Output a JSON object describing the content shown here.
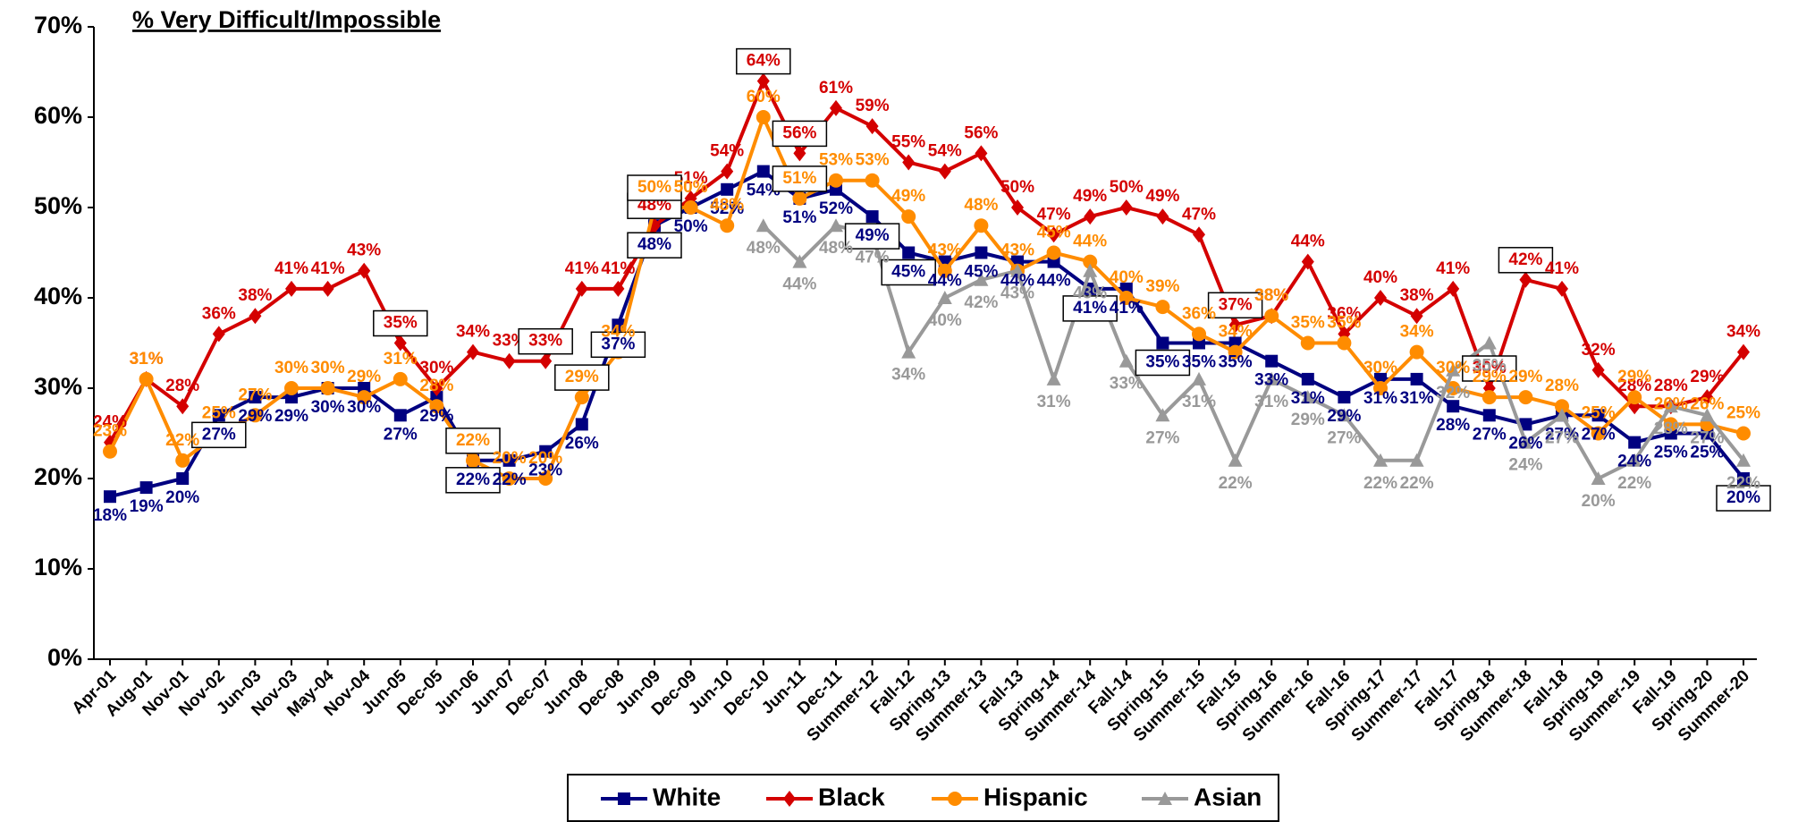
{
  "chart_data": {
    "type": "line",
    "title": "% Very Difficult/Impossible",
    "categories": [
      "Apr-01",
      "Aug-01",
      "Nov-01",
      "Nov-02",
      "Jun-03",
      "Nov-03",
      "May-04",
      "Nov-04",
      "Jun-05",
      "Dec-05",
      "Jun-06",
      "Jun-07",
      "Dec-07",
      "Jun-08",
      "Dec-08",
      "Jun-09",
      "Dec-09",
      "Jun-10",
      "Dec-10",
      "Jun-11",
      "Dec-11",
      "Summer-12",
      "Fall-12",
      "Spring-13",
      "Summer-13",
      "Fall-13",
      "Spring-14",
      "Summer-14",
      "Fall-14",
      "Spring-15",
      "Summer-15",
      "Fall-15",
      "Spring-16",
      "Summer-16",
      "Fall-16",
      "Spring-17",
      "Summer-17",
      "Fall-17",
      "Spring-18",
      "Summer-18",
      "Fall-18",
      "Spring-19",
      "Summer-19",
      "Fall-19",
      "Spring-20",
      "Summer-20"
    ],
    "ylim": [
      0,
      70
    ],
    "yticks": [
      {
        "value": 0,
        "label": "0%"
      },
      {
        "value": 10,
        "label": "10%"
      },
      {
        "value": 20,
        "label": "20%"
      },
      {
        "value": 30,
        "label": "30%"
      },
      {
        "value": 40,
        "label": "40%"
      },
      {
        "value": 50,
        "label": "50%"
      },
      {
        "value": 60,
        "label": "60%"
      },
      {
        "value": 70,
        "label": "70%"
      }
    ],
    "legend": "bottom",
    "series": [
      {
        "name": "White",
        "color": "#000080",
        "marker": "square",
        "values": [
          18,
          19,
          20,
          27,
          29,
          29,
          30,
          30,
          27,
          29,
          22,
          22,
          23,
          26,
          37,
          48,
          50,
          52,
          54,
          51,
          52,
          49,
          45,
          44,
          45,
          44,
          44,
          41,
          41,
          35,
          35,
          35,
          33,
          31,
          29,
          31,
          31,
          28,
          27,
          26,
          27,
          27,
          24,
          25,
          25,
          20
        ],
        "value_labels": [
          "18%",
          "19%",
          "20%",
          "27%",
          "29%",
          "29%",
          "30%",
          "30%",
          "27%",
          "29%",
          "22%",
          "22%",
          "23%",
          "26%",
          "37%",
          "48%",
          "50%",
          "52%",
          "54%",
          "51%",
          "52%",
          "49%",
          "45%",
          "44%",
          "45%",
          "44%",
          "44%",
          "41%",
          "41%",
          "35%",
          "35%",
          "35%",
          "33%",
          "31%",
          "29%",
          "31%",
          "31%",
          "28%",
          "27%",
          "26%",
          "27%",
          "27%",
          "24%",
          "25%",
          "25%",
          "20%"
        ],
        "boxed": [
          3,
          10,
          14,
          15,
          21,
          22,
          27,
          29,
          45
        ]
      },
      {
        "name": "Black",
        "color": "#d40000",
        "marker": "diamond",
        "values": [
          24,
          31,
          28,
          36,
          38,
          41,
          41,
          43,
          35,
          30,
          34,
          33,
          33,
          41,
          41,
          48,
          51,
          54,
          64,
          56,
          61,
          59,
          55,
          54,
          56,
          50,
          47,
          49,
          50,
          49,
          47,
          37,
          38,
          44,
          36,
          40,
          38,
          41,
          30,
          42,
          41,
          32,
          28,
          28,
          29,
          34
        ],
        "value_labels": [
          "24%",
          "31%",
          "28%",
          "36%",
          "38%",
          "41%",
          "41%",
          "43%",
          "35%",
          "30%",
          "34%",
          "33%",
          "33%",
          "41%",
          "41%",
          "48%",
          "51%",
          "54%",
          "64%",
          "56%",
          "61%",
          "59%",
          "55%",
          "54%",
          "56%",
          "50%",
          "47%",
          "49%",
          "50%",
          "49%",
          "47%",
          "37%",
          "38%",
          "44%",
          "36%",
          "40%",
          "38%",
          "41%",
          "30%",
          "42%",
          "41%",
          "32%",
          "28%",
          "28%",
          "29%",
          "34%"
        ],
        "boxed": [
          8,
          12,
          15,
          18,
          19,
          31,
          38,
          39
        ]
      },
      {
        "name": "Hispanic",
        "color": "#ff8c00",
        "marker": "circle",
        "values": [
          23,
          31,
          22,
          25,
          27,
          30,
          30,
          29,
          31,
          28,
          22,
          20,
          20,
          29,
          34,
          50,
          50,
          48,
          60,
          51,
          53,
          53,
          49,
          43,
          48,
          43,
          45,
          44,
          40,
          39,
          36,
          34,
          38,
          35,
          35,
          30,
          34,
          30,
          29,
          29,
          28,
          25,
          29,
          26,
          26,
          25
        ],
        "value_labels": [
          "23%",
          "31%",
          "22%",
          "25%",
          "27%",
          "30%",
          "30%",
          "29%",
          "31%",
          "28%",
          "22%",
          "20%",
          "20%",
          "29%",
          "34%",
          "50%",
          "50%",
          "48%",
          "60%",
          "51%",
          "53%",
          "53%",
          "49%",
          "43%",
          "48%",
          "43%",
          "45%",
          "44%",
          "40%",
          "39%",
          "36%",
          "34%",
          "38%",
          "35%",
          "35%",
          "30%",
          "34%",
          "30%",
          "29%",
          "29%",
          "28%",
          "25%",
          "29%",
          "26%",
          "26%",
          "25%"
        ],
        "boxed": [
          10,
          13,
          15,
          19
        ]
      },
      {
        "name": "Asian",
        "color": "#999999",
        "marker": "triangle",
        "values": [
          null,
          null,
          null,
          null,
          null,
          null,
          null,
          null,
          null,
          null,
          null,
          null,
          null,
          null,
          null,
          null,
          null,
          null,
          48,
          44,
          48,
          47,
          34,
          40,
          42,
          43,
          31,
          43,
          33,
          27,
          31,
          22,
          31,
          29,
          27,
          22,
          22,
          32,
          35,
          24,
          27,
          20,
          22,
          28,
          27,
          22
        ],
        "value_labels": [
          null,
          null,
          null,
          null,
          null,
          null,
          null,
          null,
          null,
          null,
          null,
          null,
          null,
          null,
          null,
          null,
          null,
          null,
          "48%",
          "44%",
          "48%",
          "47%",
          "34%",
          "40%",
          "42%",
          "43%",
          "31%",
          "43%",
          "33%",
          "27%",
          "31%",
          "22%",
          "31%",
          "29%",
          "27%",
          "22%",
          "22%",
          "32%",
          "35%",
          "24%",
          "27%",
          "20%",
          "22%",
          "28%",
          "27%",
          "22%"
        ],
        "boxed": []
      }
    ]
  }
}
